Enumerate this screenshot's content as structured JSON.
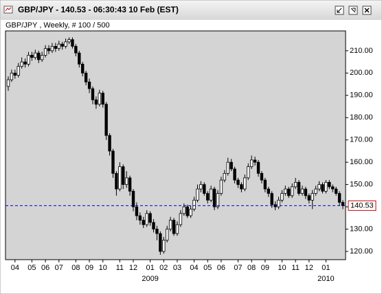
{
  "chart_data": {
    "type": "candlestick",
    "title": "GBP/JPY - 140.53 - 06:30:43  10 Feb (EST)",
    "subtitle": "GBP/JPY , Weekly, # 100 / 500",
    "categories": [
      null,
      null,
      "04",
      null,
      null,
      null,
      null,
      "05",
      null,
      null,
      null,
      "06",
      null,
      null,
      null,
      "07",
      null,
      null,
      null,
      null,
      "08",
      null,
      null,
      null,
      "09",
      null,
      null,
      null,
      "10",
      null,
      null,
      null,
      null,
      "11",
      null,
      null,
      null,
      "12",
      null,
      null,
      null,
      null,
      "01",
      null,
      null,
      null,
      "02",
      null,
      null,
      null,
      "03",
      null,
      null,
      null,
      null,
      "04",
      null,
      null,
      null,
      "05",
      null,
      null,
      null,
      "06",
      null,
      null,
      null,
      null,
      "07",
      null,
      null,
      null,
      "08",
      null,
      null,
      null,
      "09",
      null,
      null,
      null,
      null,
      "10",
      null,
      null,
      null,
      "11",
      null,
      null,
      null,
      "12",
      null,
      null,
      null,
      null,
      "01",
      null,
      null,
      null,
      null,
      null
    ],
    "secondary_categories": [
      null,
      null,
      null,
      null,
      null,
      null,
      null,
      null,
      null,
      null,
      null,
      null,
      null,
      null,
      null,
      null,
      null,
      null,
      null,
      null,
      null,
      null,
      null,
      null,
      null,
      null,
      null,
      null,
      null,
      null,
      null,
      null,
      null,
      null,
      null,
      null,
      null,
      null,
      null,
      null,
      null,
      null,
      "2009",
      null,
      null,
      null,
      null,
      null,
      null,
      null,
      null,
      null,
      null,
      null,
      null,
      null,
      null,
      null,
      null,
      null,
      null,
      null,
      null,
      null,
      null,
      null,
      null,
      null,
      null,
      null,
      null,
      null,
      null,
      null,
      null,
      null,
      null,
      null,
      null,
      null,
      null,
      null,
      null,
      null,
      null,
      null,
      null,
      null,
      null,
      null,
      null,
      null,
      null,
      null,
      "2010",
      null,
      null,
      null,
      null,
      null
    ],
    "open": [
      194,
      197,
      200,
      199,
      203,
      205,
      204,
      208,
      207,
      209,
      206,
      208,
      211,
      210,
      212,
      211,
      213,
      212,
      214,
      215,
      212,
      209,
      204,
      200,
      196,
      193,
      188,
      186,
      191,
      186,
      172,
      165,
      155,
      148,
      158,
      150,
      153,
      147,
      140,
      136,
      134,
      132,
      137,
      133,
      130,
      128,
      120,
      125,
      130,
      134,
      128,
      132,
      137,
      140,
      136,
      139,
      143,
      148,
      150,
      146,
      143,
      148,
      140,
      146,
      152,
      155,
      160,
      157,
      152,
      150,
      148,
      153,
      158,
      161,
      160,
      155,
      152,
      148,
      146,
      141,
      140,
      143,
      146,
      148,
      145,
      149,
      151,
      146,
      148,
      145,
      143,
      146,
      148,
      150,
      147,
      151,
      149,
      148,
      146,
      142
    ],
    "high": [
      198.5,
      201.5,
      201.5,
      204.5,
      207,
      206.5,
      209.5,
      209.5,
      210.5,
      210,
      209.5,
      212.5,
      212.5,
      213.5,
      213.5,
      214.5,
      214,
      215.5,
      216,
      216,
      213,
      210,
      205,
      201,
      197.5,
      194,
      189.5,
      192.5,
      192,
      187,
      173,
      166,
      156,
      160,
      159,
      156,
      154,
      148,
      142,
      137.5,
      135.5,
      138.5,
      138,
      134.5,
      131.5,
      129,
      126.5,
      131.5,
      135.5,
      135,
      133.5,
      138.5,
      141.5,
      141,
      140.5,
      144.5,
      150,
      151.5,
      151,
      147,
      149.5,
      149,
      147.5,
      153.5,
      156.5,
      162,
      161.5,
      158,
      153,
      151,
      154.5,
      159.5,
      163,
      162.5,
      161,
      156,
      153,
      149,
      147,
      142.5,
      144.5,
      147.5,
      149.5,
      149,
      150.5,
      153,
      152,
      149.5,
      149,
      146,
      147.5,
      149.5,
      151.5,
      151,
      152,
      152,
      150,
      149,
      147,
      143
    ],
    "low": [
      192,
      196,
      197.5,
      198,
      202,
      202.5,
      203,
      205.5,
      206,
      204.5,
      205,
      207,
      208.5,
      209,
      209.5,
      210,
      210.5,
      211,
      213,
      211,
      207.5,
      202.5,
      198.5,
      194.5,
      191,
      186,
      184,
      185,
      184.5,
      170,
      163,
      153,
      145,
      147,
      148,
      148.5,
      145,
      138,
      134,
      132,
      130.5,
      131,
      131.5,
      128.5,
      125,
      118.5,
      119,
      124,
      129,
      127,
      127,
      131,
      136,
      135,
      135,
      138,
      142,
      146.5,
      145,
      141.5,
      142,
      138.5,
      139,
      145,
      151,
      154,
      156,
      150.5,
      148.5,
      146.5,
      147,
      152,
      157,
      158.5,
      153.5,
      150.5,
      146.5,
      144.5,
      139.5,
      138.5,
      139,
      142,
      145,
      144,
      144,
      148,
      145,
      145,
      143.5,
      141.5,
      139,
      145,
      147,
      146,
      146,
      148,
      146.5,
      145,
      140.5,
      139
    ],
    "close": [
      197,
      200,
      199,
      203,
      205,
      204,
      208,
      207,
      209,
      206,
      208,
      211,
      210,
      212,
      211,
      213,
      212,
      214,
      215,
      212,
      209,
      204,
      200,
      196,
      193,
      188,
      186,
      191,
      186,
      172,
      165,
      155,
      148,
      158,
      150,
      153,
      147,
      140,
      136,
      134,
      132,
      137,
      133,
      130,
      128,
      120,
      125,
      130,
      134,
      128,
      132,
      137,
      140,
      136,
      139,
      143,
      148,
      150,
      146,
      143,
      148,
      140,
      146,
      152,
      155,
      160,
      157,
      152,
      150,
      148,
      153,
      158,
      161,
      160,
      155,
      152,
      148,
      146,
      141,
      140,
      143,
      146,
      148,
      145,
      149,
      151,
      146,
      148,
      145,
      143,
      146,
      148,
      150,
      147,
      151,
      149,
      148,
      146,
      142,
      140.53
    ],
    "up_color": "#ffffff",
    "down_color": "#000000",
    "last_value": 140.53,
    "last_value_color": "#0000cc",
    "ylim": [
      116.3,
      218.9
    ],
    "yticks": [
      {
        "value": 120,
        "label": "120.00"
      },
      {
        "value": 130,
        "label": "130.00"
      },
      {
        "value": 140,
        "label": "140.00"
      },
      {
        "value": 150,
        "label": "150.00"
      },
      {
        "value": 160,
        "label": "160.00"
      },
      {
        "value": 170,
        "label": "170.00"
      },
      {
        "value": 180,
        "label": "180.00"
      },
      {
        "value": 190,
        "label": "190.00"
      },
      {
        "value": 200,
        "label": "200.00"
      },
      {
        "value": 210,
        "label": "210.00"
      }
    ],
    "grid": false
  }
}
